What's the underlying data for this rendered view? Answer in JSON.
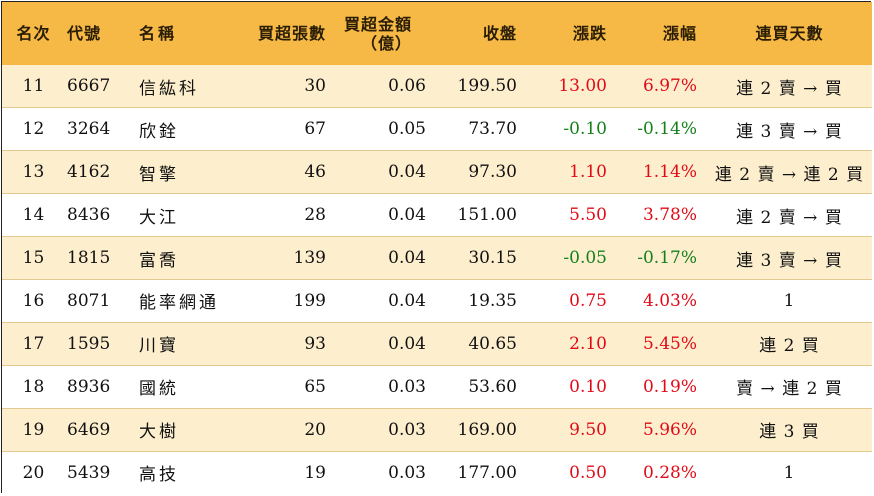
{
  "table": {
    "headers": {
      "rank": "名次",
      "code": "代號",
      "name": "名稱",
      "net_buy_lots": "買超張數",
      "net_buy_amount_line1": "買超金額",
      "net_buy_amount_line2": "（億）",
      "close": "收盤",
      "change": "漲跌",
      "change_pct": "漲幅",
      "consecutive_days": "連買天數"
    },
    "colors": {
      "header_bg": "#f6b945",
      "stripe_bg": "#fdefce",
      "up": "#e00b17",
      "down": "#157f1b"
    },
    "rows": [
      {
        "rank": "11",
        "code": "6667",
        "name": "信紘科",
        "lots": "30",
        "amount": "0.06",
        "close": "199.50",
        "change": "13.00",
        "pct": "6.97%",
        "days": "連 2 賣 → 買"
      },
      {
        "rank": "12",
        "code": "3264",
        "name": "欣銓",
        "lots": "67",
        "amount": "0.05",
        "close": "73.70",
        "change": "-0.10",
        "pct": "-0.14%",
        "days": "連 3 賣 → 買"
      },
      {
        "rank": "13",
        "code": "4162",
        "name": "智擎",
        "lots": "46",
        "amount": "0.04",
        "close": "97.30",
        "change": "1.10",
        "pct": "1.14%",
        "days": "連 2 賣 → 連 2 買"
      },
      {
        "rank": "14",
        "code": "8436",
        "name": "大江",
        "lots": "28",
        "amount": "0.04",
        "close": "151.00",
        "change": "5.50",
        "pct": "3.78%",
        "days": "連 2 賣 → 買"
      },
      {
        "rank": "15",
        "code": "1815",
        "name": "富喬",
        "lots": "139",
        "amount": "0.04",
        "close": "30.15",
        "change": "-0.05",
        "pct": "-0.17%",
        "days": "連 3 賣 → 買"
      },
      {
        "rank": "16",
        "code": "8071",
        "name": "能率網通",
        "lots": "199",
        "amount": "0.04",
        "close": "19.35",
        "change": "0.75",
        "pct": "4.03%",
        "days": "1"
      },
      {
        "rank": "17",
        "code": "1595",
        "name": "川寶",
        "lots": "93",
        "amount": "0.04",
        "close": "40.65",
        "change": "2.10",
        "pct": "5.45%",
        "days": "連 2 買"
      },
      {
        "rank": "18",
        "code": "8936",
        "name": "國統",
        "lots": "65",
        "amount": "0.03",
        "close": "53.60",
        "change": "0.10",
        "pct": "0.19%",
        "days": "賣 → 連 2 買"
      },
      {
        "rank": "19",
        "code": "6469",
        "name": "大樹",
        "lots": "20",
        "amount": "0.03",
        "close": "169.00",
        "change": "9.50",
        "pct": "5.96%",
        "days": "連 3 買"
      },
      {
        "rank": "20",
        "code": "5439",
        "name": "高技",
        "lots": "19",
        "amount": "0.03",
        "close": "177.00",
        "change": "0.50",
        "pct": "0.28%",
        "days": "1"
      }
    ]
  }
}
